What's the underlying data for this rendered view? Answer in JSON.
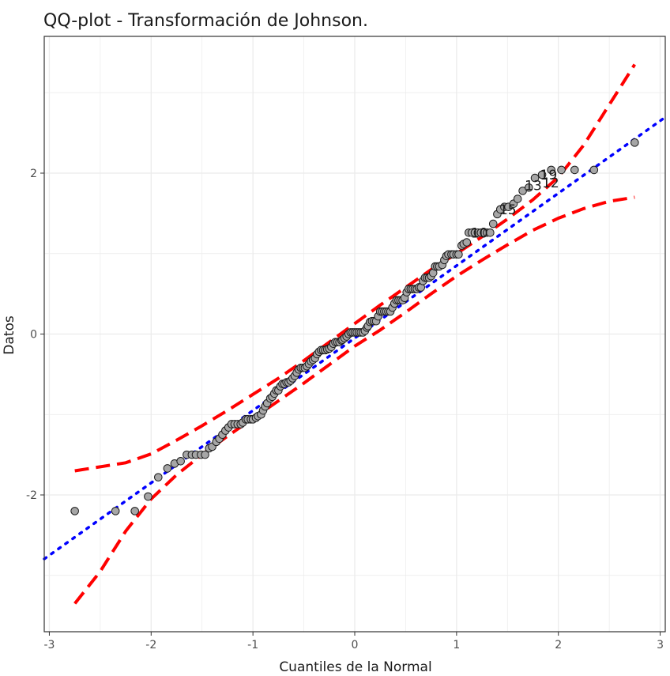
{
  "chart_data": {
    "type": "scatter",
    "title": "QQ-plot - Transformación de Johnson.",
    "xlabel": "Cuantiles de la Normal",
    "ylabel": "Datos",
    "xlim": [
      -3.05,
      3.05
    ],
    "ylim": [
      -3.7,
      3.7
    ],
    "x_ticks": [
      -3,
      -2,
      -1,
      0,
      1,
      2,
      3
    ],
    "x_tick_labels": [
      "-3",
      "-2",
      "-1",
      "0",
      "1",
      "2",
      "3"
    ],
    "y_ticks": [
      -2,
      0,
      2
    ],
    "y_tick_labels": [
      "-2",
      "0",
      "2"
    ],
    "grid": true,
    "points": [
      [
        -2.75,
        -2.2
      ],
      [
        -2.35,
        -2.2
      ],
      [
        -2.16,
        -2.2
      ],
      [
        -2.03,
        -2.02
      ],
      [
        -1.93,
        -1.78
      ],
      [
        -1.84,
        -1.67
      ],
      [
        -1.77,
        -1.61
      ],
      [
        -1.71,
        -1.58
      ],
      [
        -1.65,
        -1.5
      ],
      [
        -1.6,
        -1.5
      ],
      [
        -1.56,
        -1.5
      ],
      [
        -1.51,
        -1.5
      ],
      [
        -1.47,
        -1.5
      ],
      [
        -1.43,
        -1.42
      ],
      [
        -1.4,
        -1.4
      ],
      [
        -1.36,
        -1.34
      ],
      [
        -1.33,
        -1.3
      ],
      [
        -1.3,
        -1.25
      ],
      [
        -1.27,
        -1.2
      ],
      [
        -1.24,
        -1.16
      ],
      [
        -1.21,
        -1.12
      ],
      [
        -1.18,
        -1.12
      ],
      [
        -1.15,
        -1.12
      ],
      [
        -1.12,
        -1.12
      ],
      [
        -1.1,
        -1.1
      ],
      [
        -1.07,
        -1.06
      ],
      [
        -1.05,
        -1.06
      ],
      [
        -1.02,
        -1.06
      ],
      [
        -1.0,
        -1.06
      ],
      [
        -0.97,
        -1.04
      ],
      [
        -0.95,
        -1.02
      ],
      [
        -0.92,
        -1.0
      ],
      [
        -0.9,
        -0.95
      ],
      [
        -0.88,
        -0.9
      ],
      [
        -0.86,
        -0.86
      ],
      [
        -0.83,
        -0.8
      ],
      [
        -0.81,
        -0.78
      ],
      [
        -0.79,
        -0.74
      ],
      [
        -0.77,
        -0.7
      ],
      [
        -0.75,
        -0.7
      ],
      [
        -0.73,
        -0.65
      ],
      [
        -0.71,
        -0.62
      ],
      [
        -0.69,
        -0.62
      ],
      [
        -0.67,
        -0.6
      ],
      [
        -0.65,
        -0.6
      ],
      [
        -0.63,
        -0.58
      ],
      [
        -0.61,
        -0.55
      ],
      [
        -0.59,
        -0.52
      ],
      [
        -0.57,
        -0.48
      ],
      [
        -0.55,
        -0.44
      ],
      [
        -0.53,
        -0.42
      ],
      [
        -0.51,
        -0.42
      ],
      [
        -0.49,
        -0.42
      ],
      [
        -0.47,
        -0.4
      ],
      [
        -0.45,
        -0.37
      ],
      [
        -0.43,
        -0.34
      ],
      [
        -0.41,
        -0.32
      ],
      [
        -0.39,
        -0.3
      ],
      [
        -0.37,
        -0.25
      ],
      [
        -0.35,
        -0.22
      ],
      [
        -0.33,
        -0.2
      ],
      [
        -0.31,
        -0.2
      ],
      [
        -0.29,
        -0.2
      ],
      [
        -0.27,
        -0.19
      ],
      [
        -0.25,
        -0.18
      ],
      [
        -0.23,
        -0.16
      ],
      [
        -0.21,
        -0.12
      ],
      [
        -0.19,
        -0.1
      ],
      [
        -0.17,
        -0.1
      ],
      [
        -0.15,
        -0.1
      ],
      [
        -0.13,
        -0.08
      ],
      [
        -0.12,
        -0.07
      ],
      [
        -0.1,
        -0.05
      ],
      [
        -0.08,
        -0.03
      ],
      [
        -0.06,
        0.0
      ],
      [
        -0.04,
        0.02
      ],
      [
        -0.02,
        0.02
      ],
      [
        0.0,
        0.02
      ],
      [
        0.02,
        0.02
      ],
      [
        0.04,
        0.02
      ],
      [
        0.06,
        0.02
      ],
      [
        0.08,
        0.02
      ],
      [
        0.1,
        0.04
      ],
      [
        0.12,
        0.08
      ],
      [
        0.13,
        0.1
      ],
      [
        0.15,
        0.15
      ],
      [
        0.17,
        0.16
      ],
      [
        0.19,
        0.16
      ],
      [
        0.21,
        0.16
      ],
      [
        0.23,
        0.22
      ],
      [
        0.25,
        0.28
      ],
      [
        0.27,
        0.28
      ],
      [
        0.29,
        0.28
      ],
      [
        0.31,
        0.28
      ],
      [
        0.33,
        0.28
      ],
      [
        0.35,
        0.28
      ],
      [
        0.37,
        0.33
      ],
      [
        0.39,
        0.38
      ],
      [
        0.41,
        0.42
      ],
      [
        0.43,
        0.42
      ],
      [
        0.45,
        0.42
      ],
      [
        0.47,
        0.42
      ],
      [
        0.49,
        0.45
      ],
      [
        0.51,
        0.52
      ],
      [
        0.53,
        0.56
      ],
      [
        0.55,
        0.56
      ],
      [
        0.57,
        0.56
      ],
      [
        0.59,
        0.56
      ],
      [
        0.61,
        0.56
      ],
      [
        0.63,
        0.58
      ],
      [
        0.65,
        0.58
      ],
      [
        0.67,
        0.66
      ],
      [
        0.69,
        0.7
      ],
      [
        0.71,
        0.7
      ],
      [
        0.73,
        0.7
      ],
      [
        0.75,
        0.72
      ],
      [
        0.77,
        0.76
      ],
      [
        0.79,
        0.84
      ],
      [
        0.81,
        0.84
      ],
      [
        0.83,
        0.84
      ],
      [
        0.86,
        0.86
      ],
      [
        0.88,
        0.92
      ],
      [
        0.9,
        0.97
      ],
      [
        0.92,
        0.99
      ],
      [
        0.95,
        0.99
      ],
      [
        0.97,
        0.99
      ],
      [
        1.0,
        0.99
      ],
      [
        1.02,
        0.99
      ],
      [
        1.05,
        1.1
      ],
      [
        1.07,
        1.12
      ],
      [
        1.1,
        1.14
      ],
      [
        1.12,
        1.26
      ],
      [
        1.15,
        1.26
      ],
      [
        1.18,
        1.26
      ],
      [
        1.21,
        1.26
      ],
      [
        1.24,
        1.26
      ],
      [
        1.27,
        1.26
      ],
      [
        1.3,
        1.26
      ],
      [
        1.33,
        1.26
      ],
      [
        1.36,
        1.37
      ],
      [
        1.4,
        1.49
      ],
      [
        1.43,
        1.55
      ],
      [
        1.47,
        1.58
      ],
      [
        1.51,
        1.58
      ],
      [
        1.56,
        1.62
      ],
      [
        1.6,
        1.68
      ],
      [
        1.65,
        1.78
      ],
      [
        1.71,
        1.82
      ],
      [
        1.77,
        1.94
      ],
      [
        1.84,
        1.98
      ],
      [
        1.93,
        2.04
      ],
      [
        2.03,
        2.04
      ],
      [
        2.16,
        2.04
      ],
      [
        2.35,
        2.04
      ],
      [
        2.75,
        2.38
      ]
    ],
    "point_labels": [
      {
        "x": 1.14,
        "y": 1.26,
        "text": "10"
      },
      {
        "x": 1.42,
        "y": 1.55,
        "text": "15"
      },
      {
        "x": 1.67,
        "y": 1.85,
        "text": "13"
      },
      {
        "x": 1.84,
        "y": 1.88,
        "text": "12"
      },
      {
        "x": 1.82,
        "y": 1.98,
        "text": "19"
      }
    ],
    "reference_line": {
      "slope": 0.9,
      "intercept": -0.05,
      "style": "dotted",
      "color": "#0000ff",
      "x_range": [
        -3.05,
        3.05
      ]
    },
    "confidence_band": {
      "color": "#ff0000",
      "style": "dashed",
      "x": [
        -2.75,
        -2.5,
        -2.25,
        -2.0,
        -1.75,
        -1.5,
        -1.25,
        -1.0,
        -0.75,
        -0.5,
        -0.25,
        0.0,
        0.25,
        0.5,
        0.75,
        1.0,
        1.25,
        1.5,
        1.75,
        2.0,
        2.25,
        2.5,
        2.75
      ],
      "upper": [
        -1.7,
        -1.65,
        -1.6,
        -1.49,
        -1.32,
        -1.14,
        -0.95,
        -0.75,
        -0.55,
        -0.33,
        -0.1,
        0.13,
        0.36,
        0.58,
        0.8,
        1.0,
        1.21,
        1.43,
        1.67,
        1.95,
        2.35,
        2.85,
        3.35
      ],
      "lower": [
        -3.35,
        -2.95,
        -2.45,
        -2.05,
        -1.75,
        -1.5,
        -1.27,
        -1.05,
        -0.83,
        -0.61,
        -0.38,
        -0.15,
        0.05,
        0.27,
        0.5,
        0.72,
        0.92,
        1.11,
        1.29,
        1.44,
        1.56,
        1.65,
        1.7
      ]
    },
    "colors": {
      "point_fill": "#a6a6a6",
      "point_stroke": "#1a1a1a",
      "grid": "#ebebeb",
      "panel_border": "#333333"
    }
  }
}
